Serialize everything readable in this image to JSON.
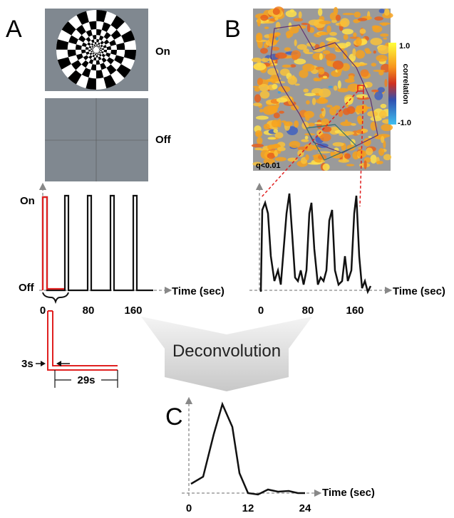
{
  "panel_a": {
    "letter": "A",
    "stim_on": "On",
    "stim_off": "Off",
    "y_on": "On",
    "y_off": "Off",
    "x_ticks": [
      "0",
      "80",
      "160"
    ],
    "x_label": "Time (sec)",
    "width_label": "3s",
    "period_label": "29s"
  },
  "panel_b": {
    "letter": "B",
    "colorbar_title": "correlation",
    "colorbar_max": "1.0",
    "colorbar_min": "-1.0",
    "threshold": "q<0.01",
    "x_ticks": [
      "0",
      "80",
      "160"
    ],
    "x_label": "Time (sec)"
  },
  "deconvolution": "Deconvolution",
  "panel_c": {
    "letter": "C",
    "x_ticks": [
      "0",
      "12",
      "24"
    ],
    "x_label": "Time (sec)"
  }
}
